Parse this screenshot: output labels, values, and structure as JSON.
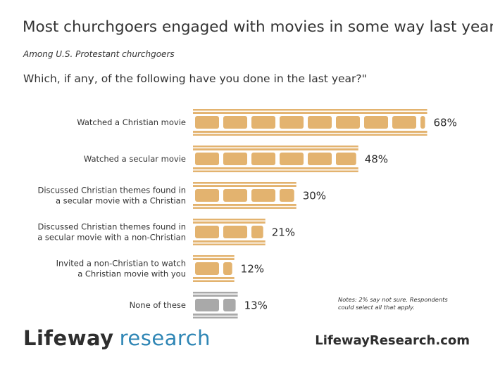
{
  "header": {
    "title": "Most churchgoers engaged with movies in some way last year",
    "subtitle": "Among U.S. Protestant churchgoers",
    "question": "Which, if any, of the following have you done in the last year?\""
  },
  "chart_data": {
    "type": "bar",
    "orientation": "horizontal",
    "unit": "%",
    "categories": [
      [
        "Watched a Christian movie"
      ],
      [
        "Watched a secular movie"
      ],
      [
        "Discussed Christian themes found in",
        "a secular movie with a Christian"
      ],
      [
        "Discussed Christian themes found in",
        "a secular movie with a non-Christian"
      ],
      [
        "Invited a non-Christian to watch",
        "a Christian movie with you"
      ],
      [
        "None of these"
      ]
    ],
    "values": [
      68,
      48,
      30,
      21,
      12,
      13
    ],
    "value_labels": [
      "68%",
      "48%",
      "30%",
      "21%",
      "12%",
      "13%"
    ],
    "bar_style": "film-strip",
    "colors": [
      "#e3b36f",
      "#e3b36f",
      "#e3b36f",
      "#e3b36f",
      "#e3b36f",
      "#a9a9a9"
    ],
    "grid": false,
    "legend": "none"
  },
  "notes": "Notes: 2% say not sure. Respondents could select all that apply.",
  "footer": {
    "logo_part1": "Lifeway",
    "logo_part2": "research",
    "website": "LifewayResearch.com"
  }
}
